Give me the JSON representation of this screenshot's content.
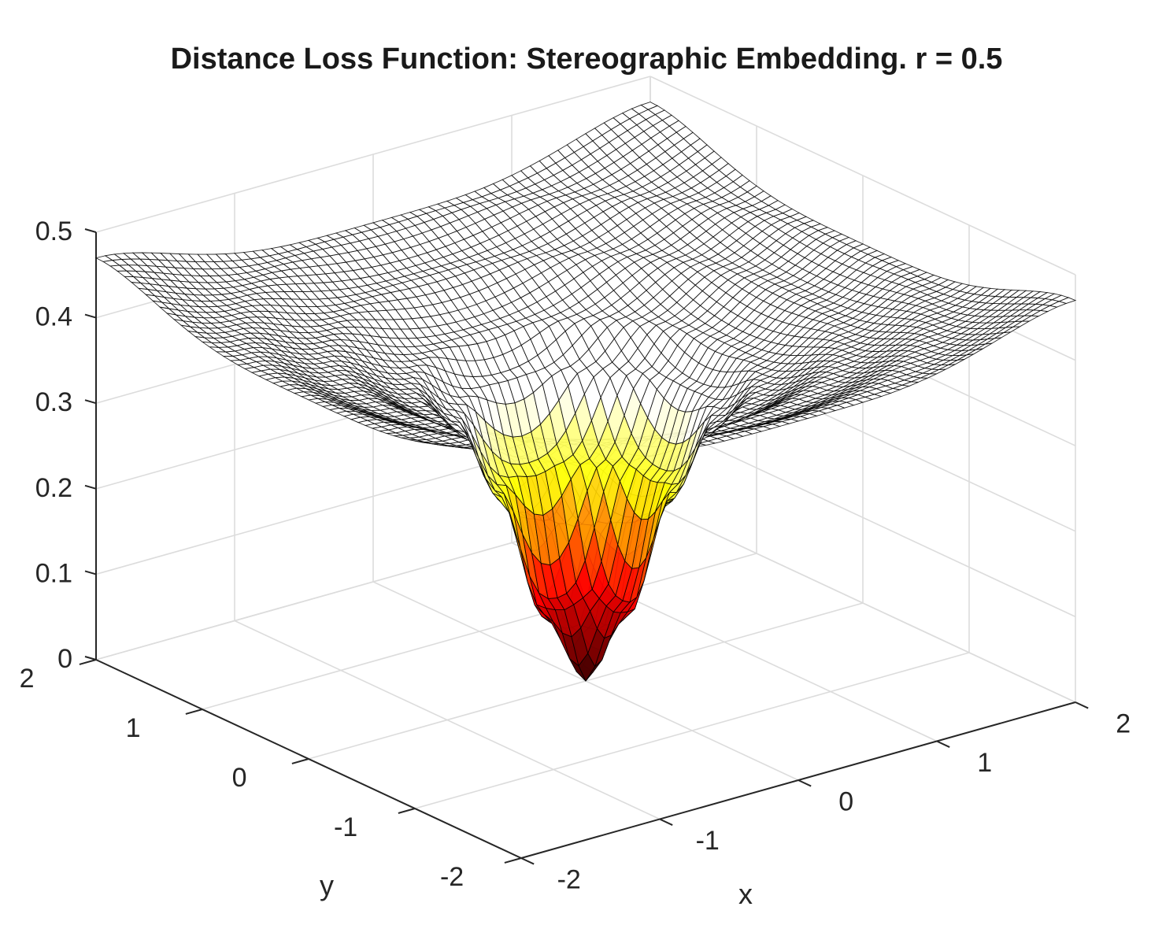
{
  "chart_data": {
    "type": "surface",
    "title": "Distance Loss Function: Stereographic Embedding. r = 0.5",
    "xlabel": "x",
    "ylabel": "y",
    "zlabel": "",
    "xlim": [
      -2,
      2
    ],
    "ylim": [
      -2,
      2
    ],
    "zlim": [
      0,
      0.5
    ],
    "x_ticks": [
      "-2",
      "-1",
      "0",
      "1",
      "2"
    ],
    "y_ticks": [
      "-2",
      "-1",
      "0",
      "1",
      "2"
    ],
    "z_ticks": [
      "0",
      "0.1",
      "0.2",
      "0.3",
      "0.4",
      "0.5"
    ],
    "grid": true,
    "colormap": "hot",
    "edge_color": "#000000",
    "surface_samples": {
      "note_axis": "z as a function of radius sqrt(x^2+y^2)",
      "radius": [
        0,
        0.25,
        0.5,
        0.75,
        1.0,
        1.5,
        2.0,
        2.83
      ],
      "z": [
        0.0,
        0.08,
        0.22,
        0.31,
        0.35,
        0.39,
        0.42,
        0.47
      ]
    }
  }
}
